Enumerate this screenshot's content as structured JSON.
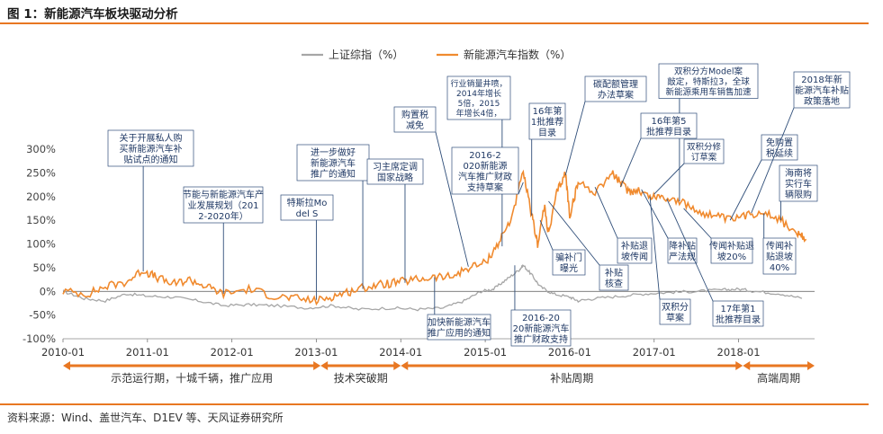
{
  "header": {
    "title": "图 1：新能源汽车板块驱动分析"
  },
  "footer": {
    "source": "资料来源：Wind、盖世汽车、D1EV 等、天风证券研究所"
  },
  "colors": {
    "accent": "#e87722",
    "series_index": "#f08a2e",
    "series_shanghai": "#a6a6a6",
    "callout_line": "#2f4e79"
  },
  "chart_data": {
    "type": "line",
    "x_tick_labels": [
      "2010-01",
      "2011-01",
      "2012-01",
      "2013-01",
      "2014-01",
      "2015-01",
      "2016-01",
      "2017-01",
      "2018-01"
    ],
    "y_tick_labels": [
      "300%",
      "250%",
      "200%",
      "150%",
      "100%",
      "50%",
      "0%",
      "-50%",
      "-100%"
    ],
    "ylim": [
      -100,
      300
    ],
    "xlim": [
      2010.0,
      2018.9
    ],
    "legend": {
      "position": "top-center",
      "items": [
        "上证综指（%）",
        "新能源汽车指数（%）"
      ]
    },
    "series": [
      {
        "name": "上证综指（%）",
        "color": "#a6a6a6",
        "x": [
          2010.0,
          2010.25,
          2010.5,
          2010.75,
          2011.0,
          2011.3,
          2011.6,
          2011.9,
          2012.2,
          2012.5,
          2012.9,
          2013.2,
          2013.5,
          2013.9,
          2014.2,
          2014.5,
          2014.75,
          2014.95,
          2015.1,
          2015.25,
          2015.4,
          2015.45,
          2015.55,
          2015.65,
          2015.8,
          2016.0,
          2016.1,
          2016.3,
          2016.6,
          2016.9,
          2017.2,
          2017.5,
          2017.8,
          2018.0,
          2018.2,
          2018.5,
          2018.75
        ],
        "y": [
          0,
          -15,
          -20,
          -5,
          -10,
          -12,
          -20,
          -30,
          -28,
          -30,
          -35,
          -30,
          -38,
          -35,
          -38,
          -35,
          -20,
          0,
          5,
          25,
          45,
          55,
          35,
          10,
          -5,
          -12,
          -20,
          -15,
          -10,
          -5,
          -2,
          0,
          3,
          5,
          0,
          -5,
          -15
        ]
      },
      {
        "name": "新能源汽车指数（%）",
        "color": "#f08a2e",
        "x": [
          2010.0,
          2010.3,
          2010.5,
          2010.75,
          2010.95,
          2011.1,
          2011.3,
          2011.5,
          2011.7,
          2011.9,
          2012.2,
          2012.5,
          2012.75,
          2013.0,
          2013.2,
          2013.4,
          2013.6,
          2013.8,
          2014.0,
          2014.2,
          2014.4,
          2014.6,
          2014.8,
          2015.0,
          2015.15,
          2015.3,
          2015.45,
          2015.55,
          2015.62,
          2015.7,
          2015.75,
          2015.85,
          2015.95,
          2016.0,
          2016.1,
          2016.3,
          2016.5,
          2016.6,
          2016.7,
          2016.8,
          2016.95,
          2017.1,
          2017.3,
          2017.5,
          2017.7,
          2017.9,
          2018.1,
          2018.3,
          2018.5,
          2018.7,
          2018.8
        ],
        "y": [
          0,
          -5,
          10,
          20,
          45,
          30,
          15,
          25,
          10,
          -5,
          5,
          -10,
          -15,
          -20,
          -10,
          0,
          10,
          15,
          20,
          25,
          30,
          30,
          50,
          60,
          100,
          150,
          250,
          160,
          100,
          180,
          120,
          210,
          250,
          160,
          230,
          210,
          250,
          230,
          210,
          215,
          200,
          200,
          190,
          170,
          160,
          150,
          160,
          170,
          150,
          120,
          110
        ]
      }
    ],
    "annotations": [
      "关于开展私人购买新能源汽车补贴试点的通知",
      "节能与新能源汽车产业发展规划（2012-2020年）",
      "特斯拉Model S",
      "进一步做好新能源汽车推广的通知",
      "习主席定调国家战略",
      "购置税减免",
      "行业销量井喷，2014年增长5倍，2015年增长4倍，",
      "2016-2020新能源汽车推广财政支持草案",
      "16年第1批推荐目录",
      "碳配额管理办法草案",
      "双积分方Model案敲定，特斯拉3，全球新能源乘用车销售加速",
      "16年第5批推荐目录",
      "双积分修订草案",
      "免购置税延续",
      "2018年新能源汽车补贴政策落地",
      "海南将实行车辆限购",
      "加快新能源汽车推广应用的通知",
      "2016-2020新能源汽车推广财政支持",
      "骗补门曝光",
      "补贴核查",
      "补贴退坡传闻",
      "降补贴严法规",
      "双积分草案",
      "17年第1批推荐目录",
      "传闻补贴退坡20%",
      "传闻补贴退坡40%"
    ],
    "periods": [
      "示范运行期，十城千辆，推广应用",
      "技术突破期",
      "补贴周期",
      "高端周期"
    ]
  }
}
